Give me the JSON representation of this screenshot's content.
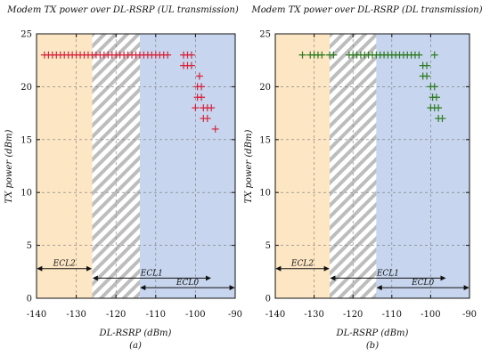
{
  "chart_data": [
    {
      "type": "scatter",
      "title": "Modem TX power over DL-RSRP (UL transmission)",
      "xlabel": "DL-RSRP (dBm)",
      "ylabel": "TX power (dBm)",
      "caption": "(a)",
      "xlim": [
        -140,
        -90
      ],
      "ylim": [
        0,
        25
      ],
      "xticks": [
        "-140",
        "-130",
        "-120",
        "-110",
        "-100",
        "-90"
      ],
      "yticks": [
        "0",
        "5",
        "10",
        "15",
        "20",
        "25"
      ],
      "grid": true,
      "marker_color": "#d6243c",
      "regions": [
        {
          "name": "ECL2",
          "from": -140,
          "to": -126,
          "color": "#fde6c4"
        },
        {
          "name": "ECL1",
          "from": -126,
          "to": -96,
          "color": "#ffffff",
          "hatch": true
        },
        {
          "name": "ECL0",
          "from": -114,
          "to": -90,
          "color": "#c7d6ee"
        }
      ],
      "ecl_labels": [
        {
          "label": "ECL2",
          "from": -140,
          "to": -126,
          "y": 2.8
        },
        {
          "label": "ECL1",
          "from": -126,
          "to": -96,
          "y": 1.9
        },
        {
          "label": "ECL0",
          "from": -114,
          "to": -90,
          "y": 1.0
        }
      ],
      "points": [
        {
          "x": -138,
          "y": 23
        },
        {
          "x": -137,
          "y": 23
        },
        {
          "x": -136,
          "y": 23
        },
        {
          "x": -135,
          "y": 23
        },
        {
          "x": -134,
          "y": 23
        },
        {
          "x": -133,
          "y": 23
        },
        {
          "x": -132,
          "y": 23
        },
        {
          "x": -131,
          "y": 23
        },
        {
          "x": -130,
          "y": 23
        },
        {
          "x": -129,
          "y": 23
        },
        {
          "x": -128,
          "y": 23
        },
        {
          "x": -127,
          "y": 23
        },
        {
          "x": -126,
          "y": 23
        },
        {
          "x": -125,
          "y": 23
        },
        {
          "x": -124,
          "y": 23
        },
        {
          "x": -123,
          "y": 23
        },
        {
          "x": -122,
          "y": 23
        },
        {
          "x": -121,
          "y": 23
        },
        {
          "x": -120,
          "y": 23
        },
        {
          "x": -119,
          "y": 23
        },
        {
          "x": -118,
          "y": 23
        },
        {
          "x": -117,
          "y": 23
        },
        {
          "x": -116,
          "y": 23
        },
        {
          "x": -115,
          "y": 23
        },
        {
          "x": -114,
          "y": 23
        },
        {
          "x": -113,
          "y": 23
        },
        {
          "x": -112,
          "y": 23
        },
        {
          "x": -111,
          "y": 23
        },
        {
          "x": -110,
          "y": 23
        },
        {
          "x": -109,
          "y": 23
        },
        {
          "x": -108,
          "y": 23
        },
        {
          "x": -107,
          "y": 23
        },
        {
          "x": -103,
          "y": 23
        },
        {
          "x": -102,
          "y": 23
        },
        {
          "x": -101,
          "y": 23
        },
        {
          "x": -103,
          "y": 22
        },
        {
          "x": -102,
          "y": 22
        },
        {
          "x": -101,
          "y": 22
        },
        {
          "x": -99,
          "y": 21
        },
        {
          "x": -99.5,
          "y": 20
        },
        {
          "x": -98.5,
          "y": 20
        },
        {
          "x": -99.5,
          "y": 19
        },
        {
          "x": -98.5,
          "y": 19
        },
        {
          "x": -100,
          "y": 18
        },
        {
          "x": -98,
          "y": 18
        },
        {
          "x": -97,
          "y": 18
        },
        {
          "x": -96,
          "y": 18
        },
        {
          "x": -98,
          "y": 17
        },
        {
          "x": -97,
          "y": 17
        },
        {
          "x": -95,
          "y": 16
        }
      ]
    },
    {
      "type": "scatter",
      "title": "Modem TX power over DL-RSRP (DL transmission)",
      "xlabel": "DL-RSRP (dBm)",
      "ylabel": "TX power (dBm)",
      "caption": "(b)",
      "xlim": [
        -140,
        -90
      ],
      "ylim": [
        0,
        25
      ],
      "xticks": [
        "-140",
        "-130",
        "-120",
        "-110",
        "-100",
        "-90"
      ],
      "yticks": [
        "0",
        "5",
        "10",
        "15",
        "20",
        "25"
      ],
      "grid": true,
      "marker_color": "#2d7a20",
      "regions": [
        {
          "name": "ECL2",
          "from": -140,
          "to": -126,
          "color": "#fde6c4"
        },
        {
          "name": "ECL1",
          "from": -126,
          "to": -96,
          "color": "#ffffff",
          "hatch": true
        },
        {
          "name": "ECL0",
          "from": -114,
          "to": -90,
          "color": "#c7d6ee"
        }
      ],
      "ecl_labels": [
        {
          "label": "ECL2",
          "from": -140,
          "to": -126,
          "y": 2.8
        },
        {
          "label": "ECL1",
          "from": -126,
          "to": -96,
          "y": 1.9
        },
        {
          "label": "ECL0",
          "from": -114,
          "to": -90,
          "y": 1.0
        }
      ],
      "points": [
        {
          "x": -133,
          "y": 23
        },
        {
          "x": -131,
          "y": 23
        },
        {
          "x": -130,
          "y": 23
        },
        {
          "x": -129,
          "y": 23
        },
        {
          "x": -128,
          "y": 23
        },
        {
          "x": -126,
          "y": 23
        },
        {
          "x": -125,
          "y": 23
        },
        {
          "x": -121,
          "y": 23
        },
        {
          "x": -120,
          "y": 23
        },
        {
          "x": -119,
          "y": 23
        },
        {
          "x": -118,
          "y": 23
        },
        {
          "x": -117,
          "y": 23
        },
        {
          "x": -116,
          "y": 23
        },
        {
          "x": -115,
          "y": 23
        },
        {
          "x": -114,
          "y": 23
        },
        {
          "x": -113,
          "y": 23
        },
        {
          "x": -112,
          "y": 23
        },
        {
          "x": -111,
          "y": 23
        },
        {
          "x": -110,
          "y": 23
        },
        {
          "x": -109,
          "y": 23
        },
        {
          "x": -108,
          "y": 23
        },
        {
          "x": -107,
          "y": 23
        },
        {
          "x": -106,
          "y": 23
        },
        {
          "x": -105,
          "y": 23
        },
        {
          "x": -104,
          "y": 23
        },
        {
          "x": -103,
          "y": 23
        },
        {
          "x": -99,
          "y": 23
        },
        {
          "x": -102,
          "y": 22
        },
        {
          "x": -101,
          "y": 22
        },
        {
          "x": -102,
          "y": 21
        },
        {
          "x": -101,
          "y": 21
        },
        {
          "x": -100,
          "y": 20
        },
        {
          "x": -99,
          "y": 20
        },
        {
          "x": -99.5,
          "y": 19
        },
        {
          "x": -98.5,
          "y": 19
        },
        {
          "x": -100,
          "y": 18
        },
        {
          "x": -99,
          "y": 18
        },
        {
          "x": -98,
          "y": 18
        },
        {
          "x": -98,
          "y": 17
        },
        {
          "x": -97,
          "y": 17
        }
      ]
    }
  ]
}
